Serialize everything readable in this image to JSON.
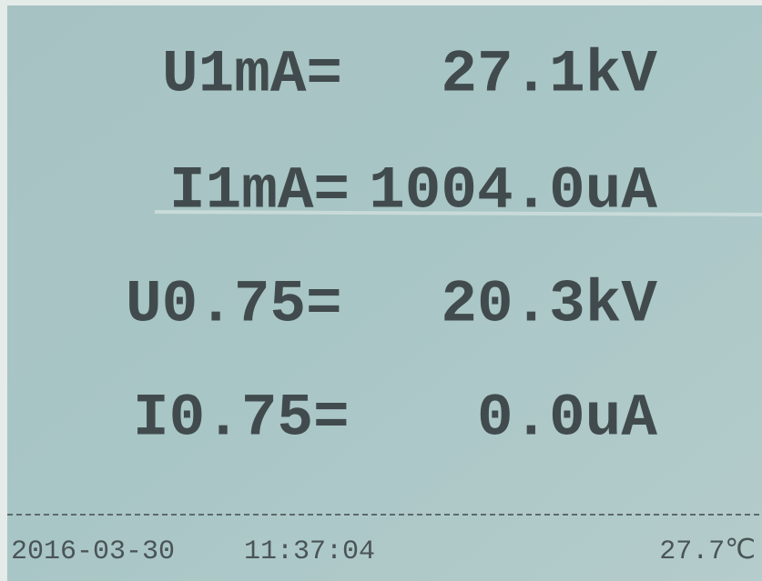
{
  "readings": [
    {
      "label": "U1mA=",
      "value": "27.1kV"
    },
    {
      "label": "I1mA=",
      "value": "1004.0uA"
    },
    {
      "label": "U0.75=",
      "value": "20.3kV"
    },
    {
      "label": "I0.75=",
      "value": "0.0uA"
    }
  ],
  "footer": {
    "date": "2016-03-30",
    "time": "11:37:04",
    "temperature": "27.7℃"
  }
}
